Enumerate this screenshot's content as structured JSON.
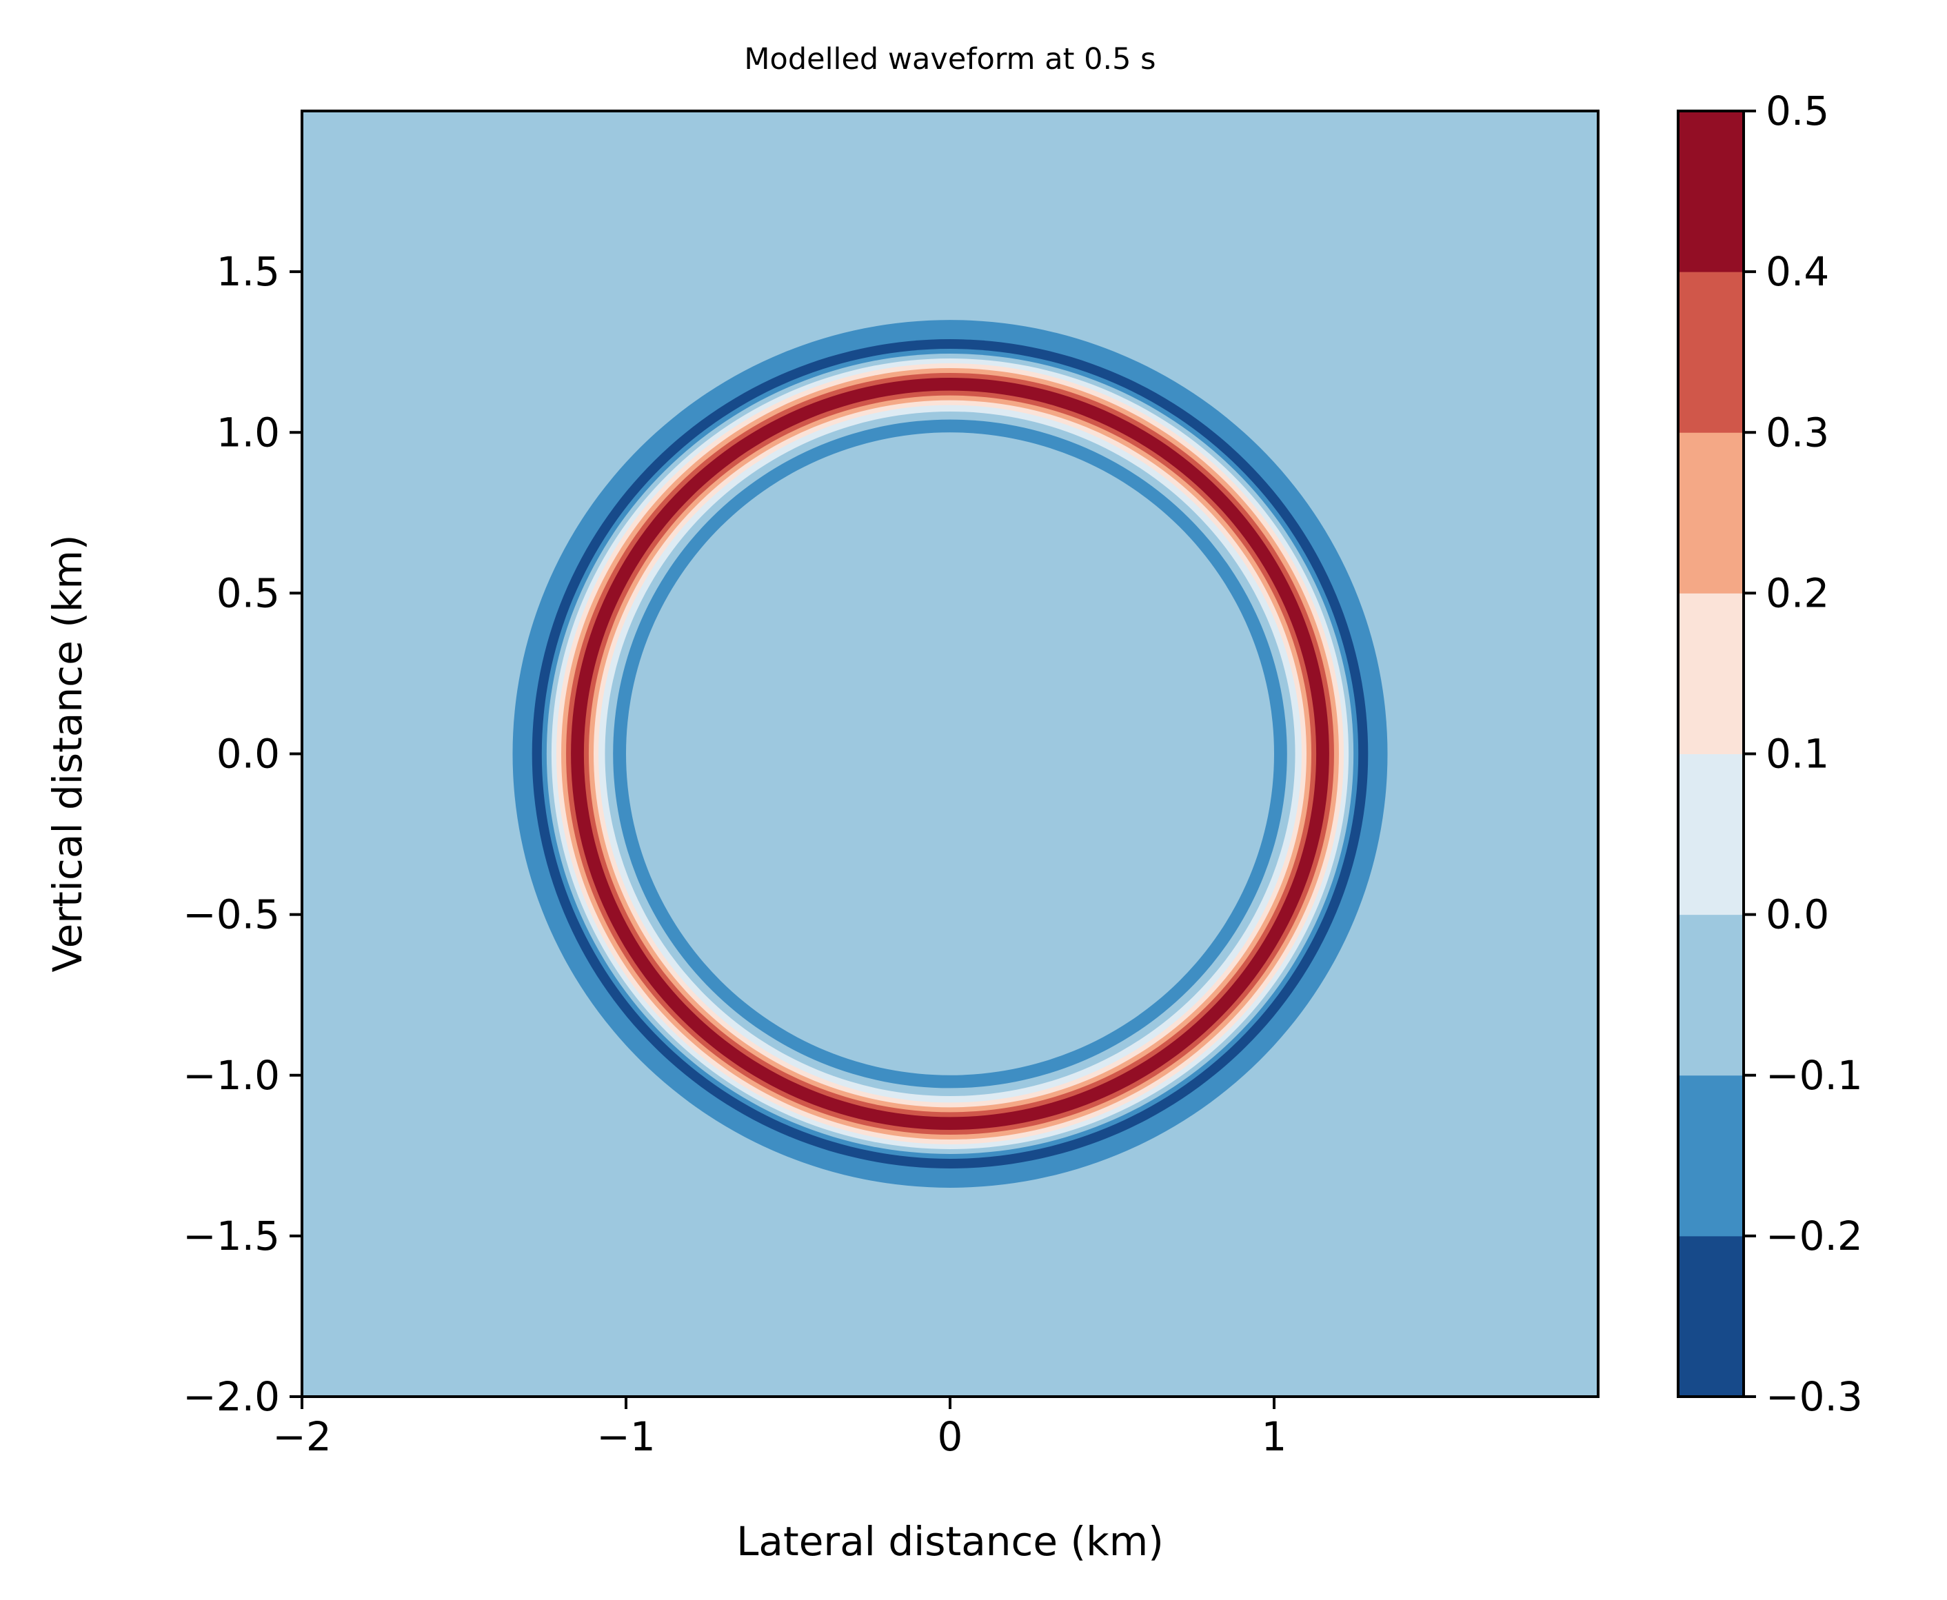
{
  "chart_data": {
    "type": "heatmap",
    "subtype": "filled-contour",
    "title": "Modelled waveform at 0.5 s",
    "xlabel": "Lateral distance (km)",
    "ylabel": "Vertical distance (km)",
    "xlim": [
      -2,
      2
    ],
    "ylim": [
      -2,
      2
    ],
    "x_ticks": [
      -2,
      -1,
      0,
      1
    ],
    "x_tick_labels": [
      "−2",
      "−1",
      "0",
      "1"
    ],
    "y_ticks": [
      -2.0,
      -1.5,
      -1.0,
      -0.5,
      0.0,
      0.5,
      1.0,
      1.5
    ],
    "y_tick_labels": [
      "−2.0",
      "−1.5",
      "−1.0",
      "−0.5",
      "0.0",
      "0.5",
      "1.0",
      "1.5"
    ],
    "background_level": [
      -0.1,
      0.0
    ],
    "rings": [
      {
        "outer_radius": 1.35,
        "range": [
          -0.2,
          -0.1
        ]
      },
      {
        "outer_radius": 1.29,
        "range": [
          -0.3,
          -0.2
        ]
      },
      {
        "outer_radius": 1.26,
        "range": [
          -0.2,
          -0.1
        ]
      },
      {
        "outer_radius": 1.245,
        "range": [
          -0.1,
          0.0
        ]
      },
      {
        "outer_radius": 1.23,
        "range": [
          0.0,
          0.1
        ]
      },
      {
        "outer_radius": 1.215,
        "range": [
          0.1,
          0.2
        ]
      },
      {
        "outer_radius": 1.2,
        "range": [
          0.2,
          0.3
        ]
      },
      {
        "outer_radius": 1.185,
        "range": [
          0.3,
          0.4
        ]
      },
      {
        "outer_radius": 1.17,
        "range": [
          0.4,
          0.5
        ]
      },
      {
        "outer_radius": 1.13,
        "range": [
          0.3,
          0.4
        ]
      },
      {
        "outer_radius": 1.115,
        "range": [
          0.2,
          0.3
        ]
      },
      {
        "outer_radius": 1.1,
        "range": [
          0.1,
          0.2
        ]
      },
      {
        "outer_radius": 1.085,
        "range": [
          0.0,
          0.1
        ]
      },
      {
        "outer_radius": 1.065,
        "range": [
          -0.1,
          0.0
        ]
      },
      {
        "outer_radius": 1.04,
        "range": [
          -0.2,
          -0.1
        ]
      },
      {
        "outer_radius": 1.0,
        "range": [
          -0.1,
          0.0
        ]
      }
    ],
    "colorbar": {
      "levels": [
        -0.3,
        -0.2,
        -0.1,
        0.0,
        0.1,
        0.2,
        0.3,
        0.4,
        0.5
      ],
      "tick_labels": [
        "−0.3",
        "−0.2",
        "−0.1",
        "0.0",
        "0.1",
        "0.2",
        "0.3",
        "0.4",
        "0.5"
      ],
      "colors": [
        "#174a8a",
        "#3f8ec3",
        "#9dc8df",
        "#deebf3",
        "#fbe3d8",
        "#f4a886",
        "#d0574a",
        "#930e25"
      ]
    }
  }
}
